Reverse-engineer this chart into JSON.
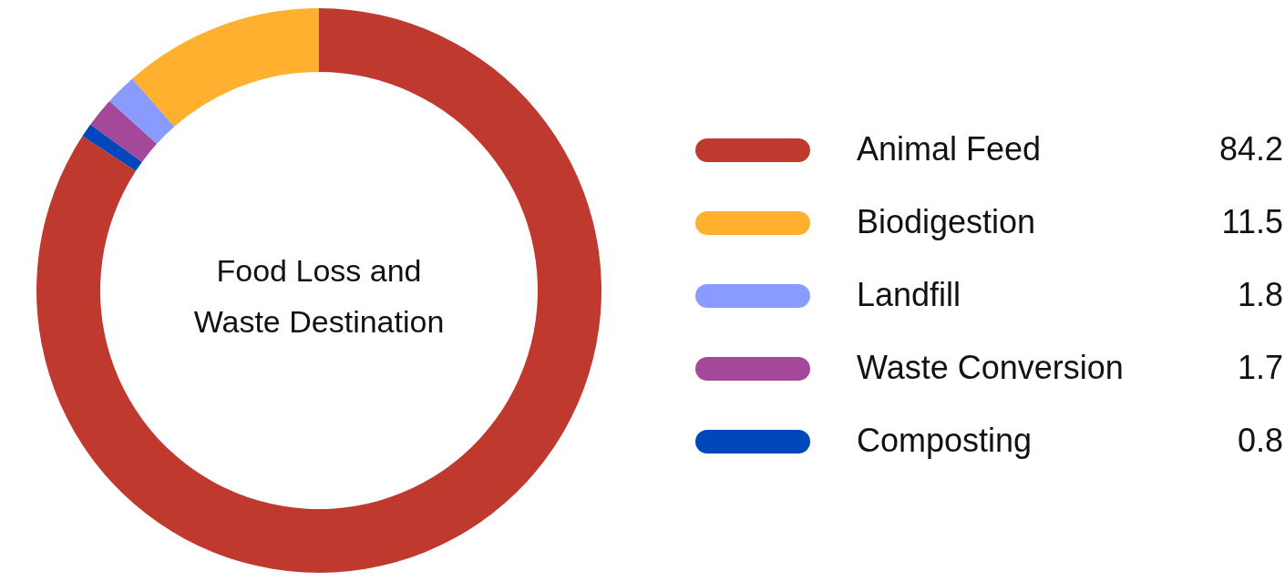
{
  "chart_data": {
    "type": "donut",
    "title": "Food Loss and Waste Destination",
    "categories": [
      "Animal Feed",
      "Biodigestion",
      "Landfill",
      "Waste Conversion",
      "Composting"
    ],
    "values": [
      84.2,
      11.5,
      1.8,
      1.7,
      0.8
    ],
    "colors": [
      "#c0392f",
      "#ffb02e",
      "#8a9bff",
      "#a4489a",
      "#0047bb"
    ],
    "data_labels": true,
    "legend": "right"
  }
}
